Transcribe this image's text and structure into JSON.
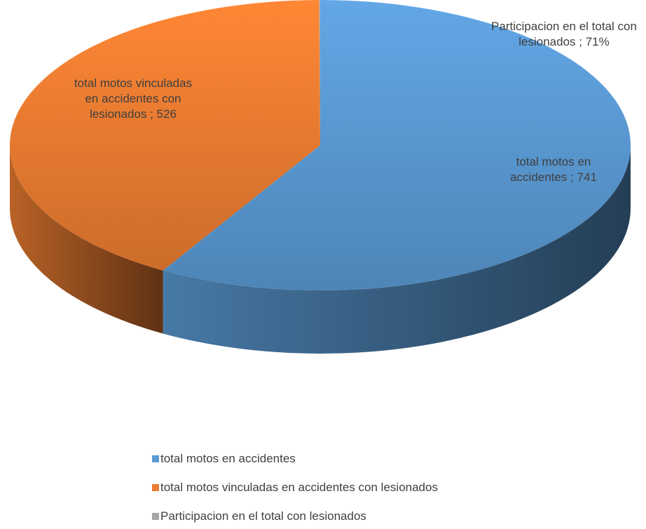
{
  "chart_data": {
    "type": "pie3d",
    "categories": [
      "total motos en accidentes",
      "total motos vinculadas en accidentes con lesionados",
      "Participacion en el total con lesionados"
    ],
    "values": [
      741,
      526,
      0.71
    ],
    "value_labels": [
      "741",
      "526",
      "71%"
    ],
    "label_separator": " ; ",
    "colors": [
      "#5b9bd5",
      "#ed7d31",
      "#a5a5a5"
    ],
    "legend": "bottom"
  }
}
